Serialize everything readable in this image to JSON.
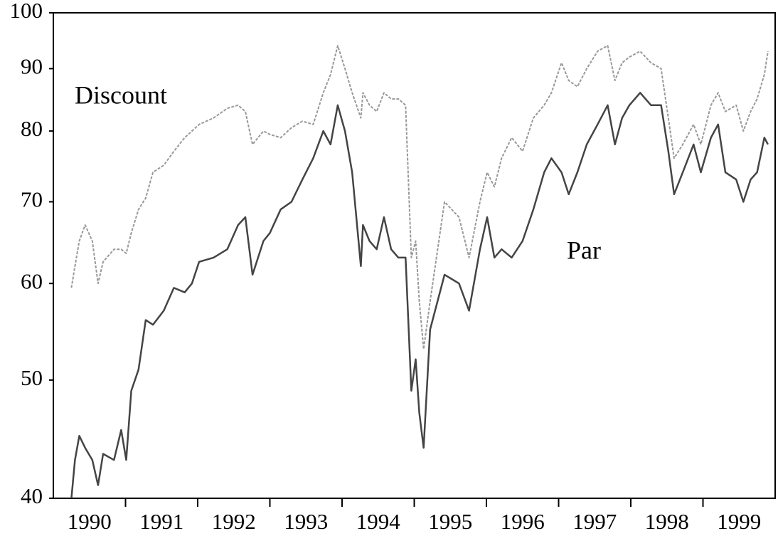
{
  "chart_data": {
    "type": "line",
    "yscale": "log",
    "x": [
      1990.25,
      1990.3,
      1990.36,
      1990.44,
      1990.54,
      1990.62,
      1990.69,
      1990.84,
      1990.94,
      1991.01,
      1991.08,
      1991.18,
      1991.28,
      1991.38,
      1991.53,
      1991.67,
      1991.82,
      1991.92,
      1992.02,
      1992.22,
      1992.41,
      1992.56,
      1992.66,
      1992.76,
      1992.91,
      1993.0,
      1993.15,
      1993.3,
      1993.45,
      1993.6,
      1993.74,
      1993.84,
      1993.94,
      1994.04,
      1994.14,
      1994.26,
      1994.29,
      1994.38,
      1994.48,
      1994.58,
      1994.68,
      1994.78,
      1994.88,
      1994.96,
      1995.02,
      1995.07,
      1995.13,
      1995.22,
      1995.42,
      1995.62,
      1995.76,
      1995.91,
      1996.01,
      1996.11,
      1996.21,
      1996.35,
      1996.5,
      1996.65,
      1996.8,
      1996.9,
      1997.04,
      1997.14,
      1997.26,
      1997.39,
      1997.54,
      1997.68,
      1997.78,
      1997.88,
      1997.98,
      1998.13,
      1998.28,
      1998.42,
      1998.52,
      1998.6,
      1998.72,
      1998.87,
      1998.97,
      1999.11,
      1999.21,
      1999.31,
      1999.46,
      1999.56,
      1999.66,
      1999.75,
      1999.85,
      1999.9
    ],
    "series": [
      {
        "name": "Discount",
        "color": "#999999",
        "dashed": true,
        "values": [
          59.5,
          62,
          65,
          67,
          65,
          60,
          62.5,
          64,
          64,
          63.5,
          66,
          69,
          70.5,
          74,
          75,
          77,
          79,
          80,
          81,
          82,
          83.5,
          84,
          83,
          78,
          80,
          79.5,
          79,
          80.5,
          81.5,
          81,
          86,
          89,
          94,
          90,
          86,
          82,
          86,
          84,
          83,
          86,
          85,
          85,
          84,
          63,
          65,
          58,
          53,
          58,
          70,
          68,
          63,
          70,
          74,
          72,
          76,
          79,
          77,
          82,
          84,
          86,
          91,
          88,
          87,
          90,
          93,
          94,
          88,
          91,
          92,
          93,
          91,
          90,
          82,
          76,
          78,
          81,
          78,
          84,
          86,
          83,
          84,
          80,
          83,
          85,
          89,
          93
        ]
      },
      {
        "name": "Par",
        "color": "#444444",
        "dashed": false,
        "values": [
          40,
          43,
          45,
          44,
          43,
          41,
          43.5,
          43,
          45.5,
          43,
          49,
          51,
          56,
          55.5,
          57,
          59.5,
          59,
          60,
          62.5,
          63,
          64,
          67,
          68,
          61,
          65,
          66,
          69,
          70,
          73,
          76,
          80,
          78,
          84,
          80,
          74,
          62,
          67,
          65,
          64,
          68,
          64,
          63,
          63,
          49,
          52,
          47,
          44,
          55,
          61,
          60,
          57,
          64,
          68,
          63,
          64,
          63,
          65,
          69,
          74,
          76,
          74,
          71,
          74,
          78,
          81,
          84,
          78,
          82,
          84,
          86,
          84,
          84,
          77,
          71,
          74,
          78,
          74,
          79,
          81,
          74,
          73,
          70,
          73,
          74,
          79,
          78
        ]
      }
    ],
    "xlim": [
      1990,
      2000
    ],
    "xticks": [
      {
        "value": 1990.5,
        "label": "1990"
      },
      {
        "value": 1991.5,
        "label": "1991"
      },
      {
        "value": 1992.5,
        "label": "1992"
      },
      {
        "value": 1993.5,
        "label": "1993"
      },
      {
        "value": 1994.5,
        "label": "1994"
      },
      {
        "value": 1995.5,
        "label": "1995"
      },
      {
        "value": 1996.5,
        "label": "1996"
      },
      {
        "value": 1997.5,
        "label": "1997"
      },
      {
        "value": 1998.5,
        "label": "1998"
      },
      {
        "value": 1999.5,
        "label": "1999"
      }
    ],
    "xtick_marks": [
      1991,
      1992,
      1993,
      1994,
      1995,
      1996,
      1997,
      1998,
      1999
    ],
    "ylim": [
      40,
      100
    ],
    "yticks": [
      40,
      50,
      60,
      70,
      80,
      90,
      100
    ]
  }
}
